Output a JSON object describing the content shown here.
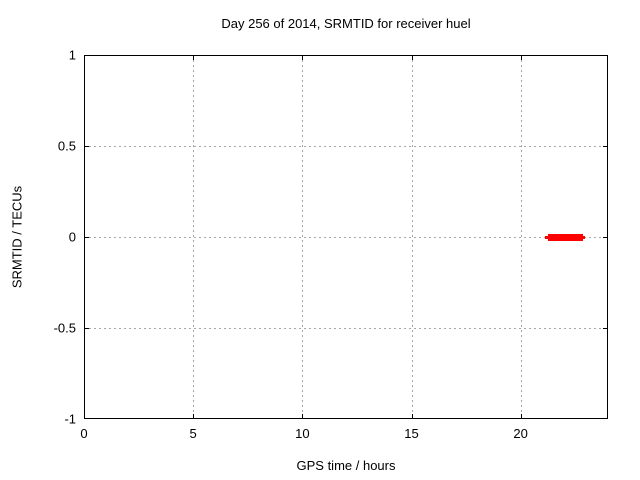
{
  "title": "Day 256 of 2014, SRMTID for receiver huel",
  "chart_data": {
    "type": "line",
    "title": "Day 256 of 2014, SRMTID for receiver huel",
    "xlabel": "GPS time / hours",
    "ylabel": "SRMTID / TECUs",
    "xlim": [
      0,
      24
    ],
    "ylim": [
      -1,
      1
    ],
    "xticks": {
      "values": [
        0,
        5,
        10,
        15,
        20
      ],
      "labels": [
        "0",
        "5",
        "10",
        "15",
        "20"
      ]
    },
    "yticks": {
      "values": [
        1,
        0.5,
        0,
        -0.5,
        -1
      ],
      "labels": [
        "1",
        "0.5",
        "0",
        "-0.5",
        "-1"
      ]
    },
    "grid": true,
    "legend": "none",
    "series": [
      {
        "name": "SRMTID",
        "color": "#ff0000",
        "y": 0,
        "x_start": 21.1,
        "x_end": 22.95,
        "x_thick_start": 21.25,
        "x_thick_end": 22.86
      }
    ]
  },
  "colors": {
    "background": "#ffffff",
    "axis": "#000000",
    "grid": "#a6a6a6",
    "text": "#000000",
    "series": "#ff0000"
  }
}
